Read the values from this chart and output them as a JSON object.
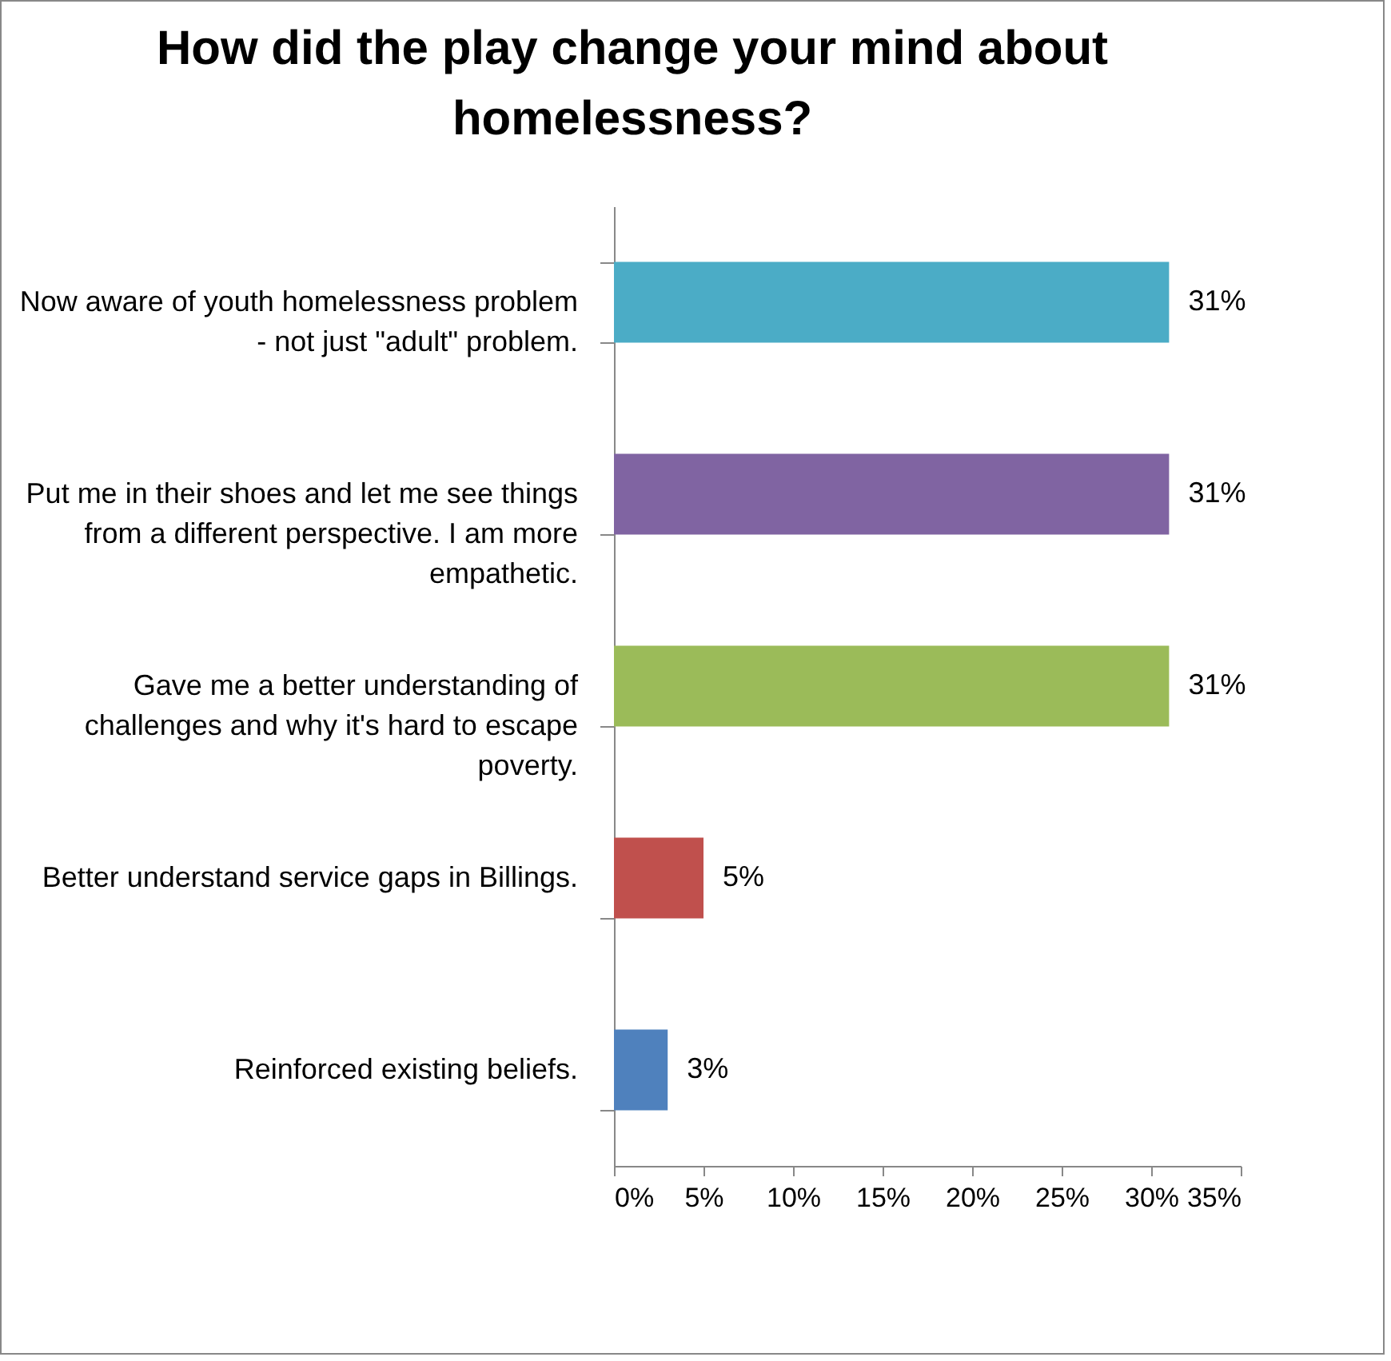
{
  "chart_data": {
    "type": "bar",
    "orientation": "horizontal",
    "title": "How did the play change your mind about homelessness?",
    "categories": [
      "Now aware of youth homelessness problem - not just \"adult\" problem.",
      "Put me in their shoes and let me see things from a different perspective. I am more empathetic.",
      "Gave me a better understanding of challenges and why it's hard to escape poverty.",
      "Better understand service gaps in Billings.",
      "Reinforced existing beliefs."
    ],
    "values": [
      31,
      31,
      31,
      5,
      3
    ],
    "colors": [
      "#4bacc6",
      "#8064a2",
      "#9bbb59",
      "#c0504d",
      "#4f81bd"
    ],
    "value_labels": [
      "31%",
      "31%",
      "31%",
      "5%",
      "3%"
    ],
    "xlim": [
      0,
      35
    ],
    "xticks": [
      {
        "value": 0,
        "label": "0%"
      },
      {
        "value": 5,
        "label": "5%"
      },
      {
        "value": 10,
        "label": "10%"
      },
      {
        "value": 15,
        "label": "15%"
      },
      {
        "value": 20,
        "label": "20%"
      },
      {
        "value": 25,
        "label": "25%"
      },
      {
        "value": 30,
        "label": "30%"
      },
      {
        "value": 35,
        "label": "35%"
      }
    ],
    "grid": false
  }
}
